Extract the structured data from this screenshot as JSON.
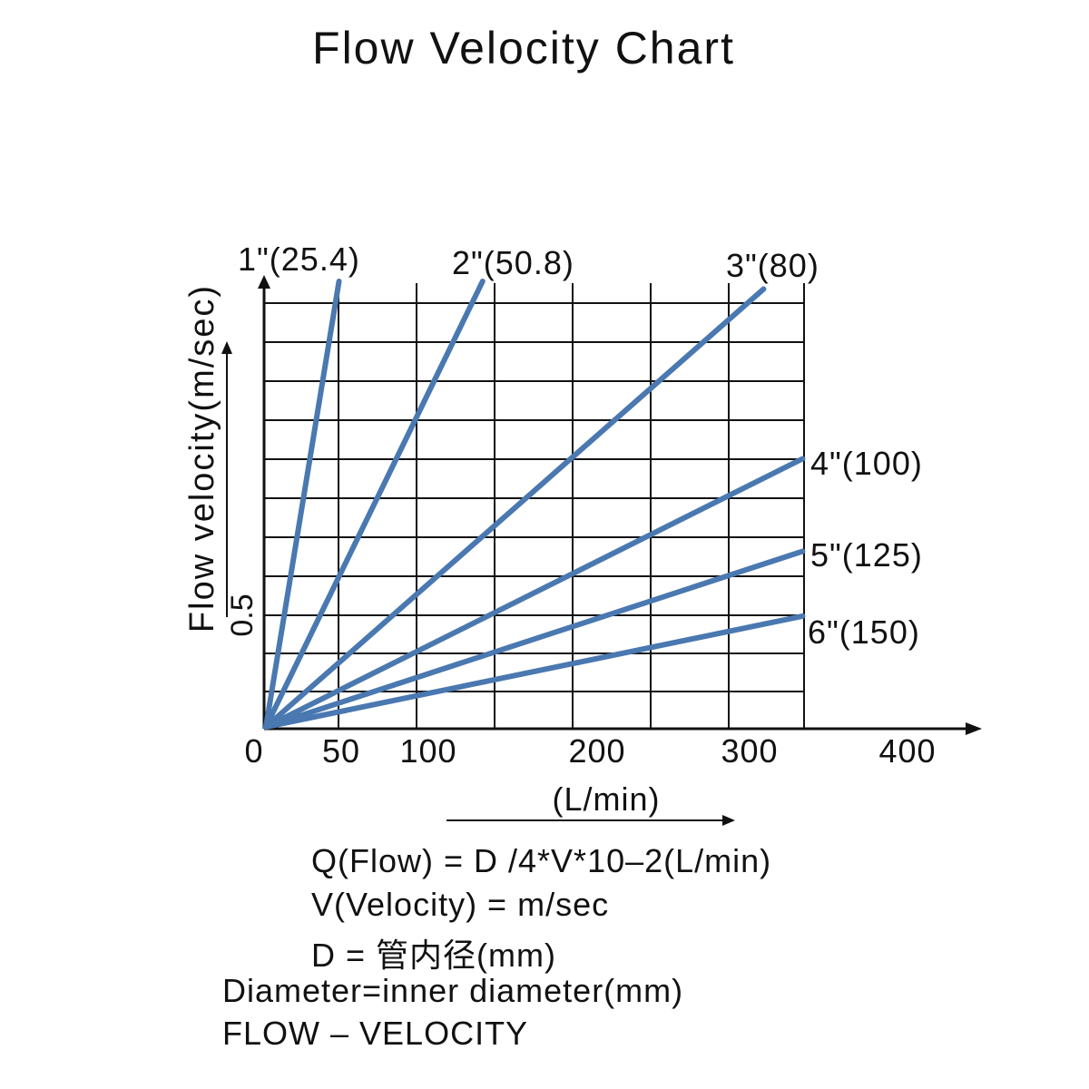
{
  "chart_data": {
    "type": "line",
    "title": "Flow Velocity Chart",
    "xlabel": "(L/min)",
    "ylabel": "Flow velocity(m/sec)",
    "x_ticks": [
      "0",
      "50",
      "100",
      "200",
      "300",
      "400"
    ],
    "y_ticks": [
      "0.5"
    ],
    "grid": true,
    "series": [
      {
        "name": "1\"(25.4)",
        "points": [
          [
            0,
            0
          ],
          [
            48,
            2.9
          ]
        ]
      },
      {
        "name": "2\"(50.8)",
        "points": [
          [
            0,
            0
          ],
          [
            140,
            2.9
          ]
        ]
      },
      {
        "name": "3\"(80)",
        "points": [
          [
            0,
            0
          ],
          [
            320,
            2.85
          ]
        ]
      },
      {
        "name": "4\"(100)",
        "points": [
          [
            0,
            0
          ],
          [
            345,
            1.75
          ]
        ]
      },
      {
        "name": "5\"(125)",
        "points": [
          [
            0,
            0
          ],
          [
            345,
            1.15
          ]
        ]
      },
      {
        "name": "6\"(150)",
        "points": [
          [
            0,
            0
          ],
          [
            345,
            0.73
          ]
        ]
      }
    ],
    "line_color": "#4a78b0"
  },
  "formulas": [
    "Q(Flow) = D /4*V*10–2(L/min)",
    "V(Velocity) = m/sec",
    "D = 管内径(mm)",
    "Diameter=inner diameter(mm)",
    "FLOW – VELOCITY"
  ]
}
